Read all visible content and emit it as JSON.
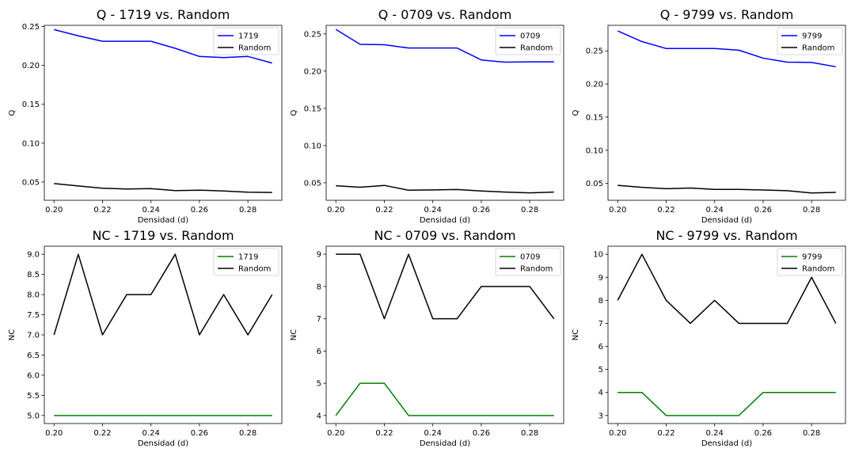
{
  "chart_data": [
    {
      "type": "line",
      "title": "Q - 1719 vs. Random",
      "xlabel": "Densidad (d)",
      "ylabel": "Q",
      "x": [
        0.2,
        0.21,
        0.22,
        0.23,
        0.24,
        0.25,
        0.26,
        0.27,
        0.28,
        0.29
      ],
      "xlim": [
        0.196,
        0.294
      ],
      "ylim": [
        0.0265,
        0.2515
      ],
      "xticks": [
        "0.20",
        "0.22",
        "0.24",
        "0.26",
        "0.28"
      ],
      "yticks": [
        "0.05",
        "0.10",
        "0.15",
        "0.20",
        "0.25"
      ],
      "series": [
        {
          "name": "1719",
          "color": "#0000ff",
          "values": [
            0.246,
            0.238,
            0.231,
            0.231,
            0.231,
            0.222,
            0.2115,
            0.21,
            0.2115,
            0.203
          ]
        },
        {
          "name": "Random",
          "color": "#000000",
          "values": [
            0.048,
            0.045,
            0.042,
            0.041,
            0.0415,
            0.039,
            0.0395,
            0.0385,
            0.037,
            0.0365
          ]
        }
      ],
      "legend": "top-right"
    },
    {
      "type": "line",
      "title": "Q - 0709 vs. Random",
      "xlabel": "Densidad (d)",
      "ylabel": "Q",
      "x": [
        0.2,
        0.21,
        0.22,
        0.23,
        0.24,
        0.25,
        0.26,
        0.27,
        0.28,
        0.29
      ],
      "xlim": [
        0.196,
        0.294
      ],
      "ylim": [
        0.0265,
        0.2615
      ],
      "xticks": [
        "0.20",
        "0.22",
        "0.24",
        "0.26",
        "0.28"
      ],
      "yticks": [
        "0.05",
        "0.10",
        "0.15",
        "0.20",
        "0.25"
      ],
      "series": [
        {
          "name": "0709",
          "color": "#0000ff",
          "values": [
            0.256,
            0.236,
            0.2355,
            0.231,
            0.231,
            0.231,
            0.215,
            0.212,
            0.2125,
            0.2125
          ]
        },
        {
          "name": "Random",
          "color": "#000000",
          "values": [
            0.046,
            0.044,
            0.0465,
            0.04,
            0.0405,
            0.041,
            0.039,
            0.0375,
            0.0365,
            0.0375
          ]
        }
      ],
      "legend": "top-right"
    },
    {
      "type": "line",
      "title": "Q - 9799 vs. Random",
      "xlabel": "Densidad (d)",
      "ylabel": "Q",
      "x": [
        0.2,
        0.21,
        0.22,
        0.23,
        0.24,
        0.25,
        0.26,
        0.27,
        0.28,
        0.29
      ],
      "xlim": [
        0.196,
        0.294
      ],
      "ylim": [
        0.0245,
        0.2885
      ],
      "xticks": [
        "0.20",
        "0.22",
        "0.24",
        "0.26",
        "0.28"
      ],
      "yticks": [
        "0.05",
        "0.10",
        "0.15",
        "0.20",
        "0.25"
      ],
      "series": [
        {
          "name": "9799",
          "color": "#0000ff",
          "values": [
            0.28,
            0.264,
            0.2535,
            0.2535,
            0.2535,
            0.251,
            0.239,
            0.233,
            0.2325,
            0.226
          ]
        },
        {
          "name": "Random",
          "color": "#000000",
          "values": [
            0.047,
            0.044,
            0.042,
            0.043,
            0.041,
            0.041,
            0.04,
            0.039,
            0.0355,
            0.0365
          ]
        }
      ],
      "legend": "top-right"
    },
    {
      "type": "line",
      "title": "NC - 1719 vs. Random",
      "xlabel": "Densidad (d)",
      "ylabel": "NC",
      "x": [
        0.2,
        0.21,
        0.22,
        0.23,
        0.24,
        0.25,
        0.26,
        0.27,
        0.28,
        0.29
      ],
      "xlim": [
        0.196,
        0.294
      ],
      "ylim": [
        4.8,
        9.2
      ],
      "xticks": [
        "0.20",
        "0.22",
        "0.24",
        "0.26",
        "0.28"
      ],
      "yticks": [
        "5.0",
        "5.5",
        "6.0",
        "6.5",
        "7.0",
        "7.5",
        "8.0",
        "8.5",
        "9.0"
      ],
      "series": [
        {
          "name": "1719",
          "color": "#008000",
          "values": [
            5,
            5,
            5,
            5,
            5,
            5,
            5,
            5,
            5,
            5
          ]
        },
        {
          "name": "Random",
          "color": "#000000",
          "values": [
            7,
            9,
            7,
            8,
            8,
            9,
            7,
            8,
            7,
            8
          ]
        }
      ],
      "legend": "top-right"
    },
    {
      "type": "line",
      "title": "NC - 0709 vs. Random",
      "xlabel": "Densidad (d)",
      "ylabel": "NC",
      "x": [
        0.2,
        0.21,
        0.22,
        0.23,
        0.24,
        0.25,
        0.26,
        0.27,
        0.28,
        0.29
      ],
      "xlim": [
        0.196,
        0.294
      ],
      "ylim": [
        3.75,
        9.25
      ],
      "xticks": [
        "0.20",
        "0.22",
        "0.24",
        "0.26",
        "0.28"
      ],
      "yticks": [
        "4",
        "5",
        "6",
        "7",
        "8",
        "9"
      ],
      "series": [
        {
          "name": "0709",
          "color": "#008000",
          "values": [
            4,
            5,
            5,
            4,
            4,
            4,
            4,
            4,
            4,
            4
          ]
        },
        {
          "name": "Random",
          "color": "#000000",
          "values": [
            9,
            9,
            7,
            9,
            7,
            7,
            8,
            8,
            8,
            7
          ]
        }
      ],
      "legend": "top-right"
    },
    {
      "type": "line",
      "title": "NC - 9799 vs. Random",
      "xlabel": "Densidad (d)",
      "ylabel": "NC",
      "x": [
        0.2,
        0.21,
        0.22,
        0.23,
        0.24,
        0.25,
        0.26,
        0.27,
        0.28,
        0.29
      ],
      "xlim": [
        0.196,
        0.294
      ],
      "ylim": [
        2.65,
        10.35
      ],
      "xticks": [
        "0.20",
        "0.22",
        "0.24",
        "0.26",
        "0.28"
      ],
      "yticks": [
        "3",
        "4",
        "5",
        "6",
        "7",
        "8",
        "9",
        "10"
      ],
      "series": [
        {
          "name": "9799",
          "color": "#008000",
          "values": [
            4,
            4,
            3,
            3,
            3,
            3,
            4,
            4,
            4,
            4
          ]
        },
        {
          "name": "Random",
          "color": "#000000",
          "values": [
            8,
            10,
            8,
            7,
            8,
            7,
            7,
            7,
            9,
            7
          ]
        }
      ],
      "legend": "top-right"
    }
  ]
}
